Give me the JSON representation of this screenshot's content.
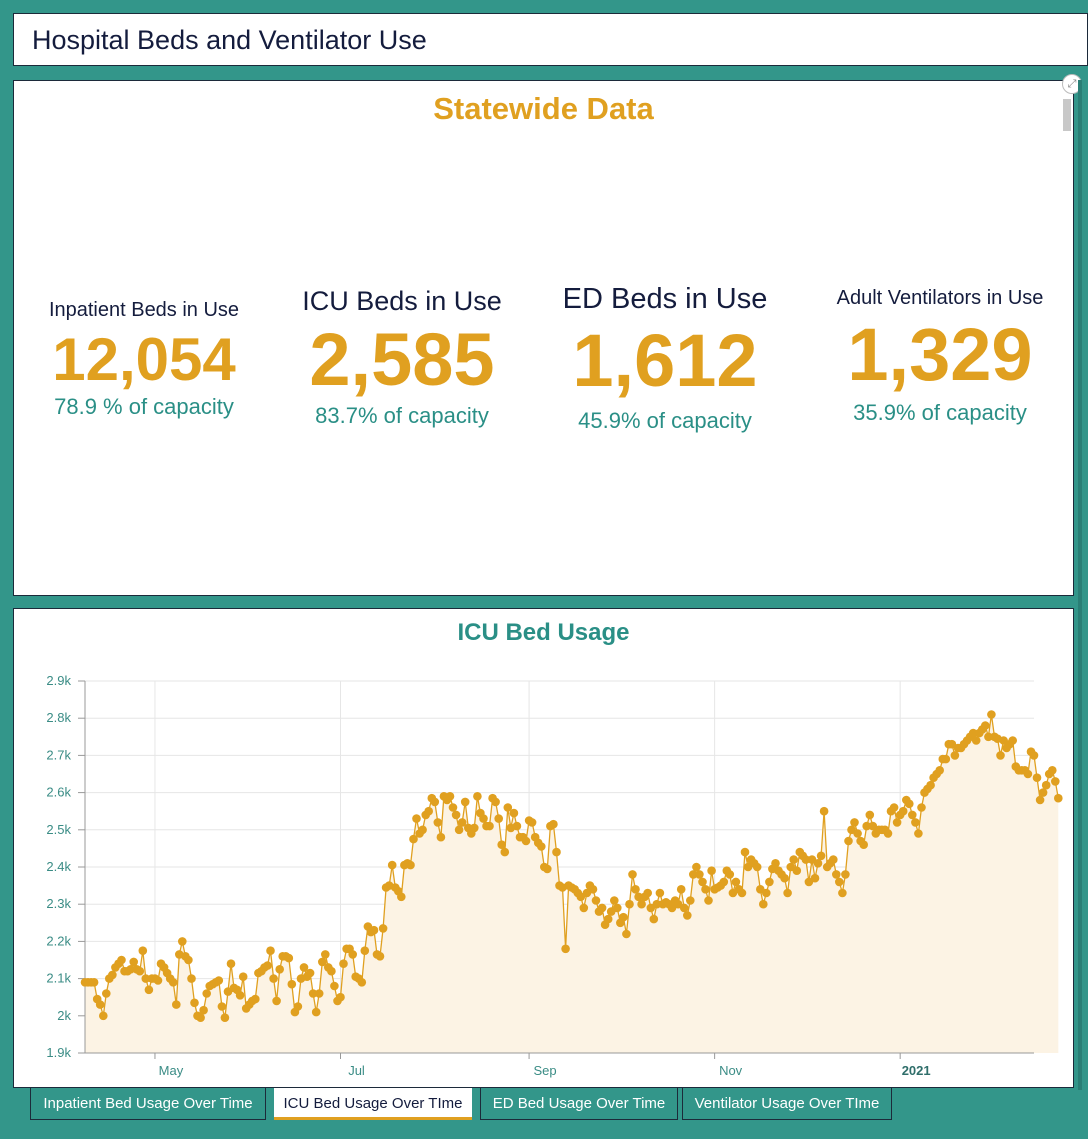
{
  "header": {
    "title": "Hospital Beds and Ventilator Use"
  },
  "stats_panel": {
    "title": "Statewide Data",
    "stats": [
      {
        "label": "Inpatient Beds in Use",
        "value": "12,054",
        "capacity": "78.9 % of capacity"
      },
      {
        "label": "ICU Beds in Use",
        "value": "2,585",
        "capacity": "83.7% of capacity"
      },
      {
        "label": "ED Beds in Use",
        "value": "1,612",
        "capacity": "45.9% of capacity"
      },
      {
        "label": "Adult Ventilators in Use",
        "value": "1,329",
        "capacity": "35.9% of capacity"
      }
    ],
    "expand_icon": "expand-icon"
  },
  "tabs": [
    {
      "label": "Inpatient Bed Usage Over Time",
      "active": false
    },
    {
      "label": "ICU Bed Usage Over TIme",
      "active": true
    },
    {
      "label": "ED Bed Usage Over Time",
      "active": false
    },
    {
      "label": "Ventilator Usage Over TIme",
      "active": false
    }
  ],
  "colors": {
    "accent": "#e0a020",
    "teal": "#33968a",
    "text_dark": "#141c3d",
    "area_fill": "#fcf3e4"
  },
  "chart_data": {
    "type": "area",
    "title": "ICU Bed Usage",
    "xlabel": "",
    "ylabel": "",
    "ylim": [
      1900,
      2900
    ],
    "yticks": [
      1900,
      2000,
      2100,
      2200,
      2300,
      2400,
      2500,
      2600,
      2700,
      2800,
      2900
    ],
    "ytick_labels": [
      "1.9k",
      "2k",
      "2.1k",
      "2.2k",
      "2.3k",
      "2.4k",
      "2.5k",
      "2.6k",
      "2.7k",
      "2.8k",
      "2.9k"
    ],
    "x_start": "2020-04-08",
    "x_end": "2021-02-14",
    "xticks": [
      {
        "date": "2020-05-01",
        "label": "May",
        "bold": false
      },
      {
        "date": "2020-07-01",
        "label": "Jul",
        "bold": false
      },
      {
        "date": "2020-09-01",
        "label": "Sep",
        "bold": false
      },
      {
        "date": "2020-11-01",
        "label": "Nov",
        "bold": false
      },
      {
        "date": "2021-01-01",
        "label": "2021",
        "bold": true
      }
    ],
    "grid": true,
    "legend": "none",
    "series": [
      {
        "name": "ICU Beds in Use",
        "start_date": "2020-04-08",
        "interval_days": 1,
        "values": [
          2090,
          2090,
          2090,
          2090,
          2045,
          2030,
          2000,
          2060,
          2100,
          2110,
          2130,
          2140,
          2150,
          2120,
          2120,
          2125,
          2145,
          2125,
          2120,
          2175,
          2100,
          2070,
          2100,
          2100,
          2095,
          2140,
          2130,
          2115,
          2100,
          2090,
          2030,
          2165,
          2200,
          2160,
          2150,
          2100,
          2035,
          2000,
          1995,
          2015,
          2060,
          2080,
          2085,
          2090,
          2095,
          2025,
          1995,
          2065,
          2140,
          2075,
          2070,
          2055,
          2105,
          2020,
          2030,
          2040,
          2045,
          2115,
          2120,
          2130,
          2135,
          2175,
          2100,
          2040,
          2125,
          2160,
          2160,
          2155,
          2085,
          2010,
          2025,
          2100,
          2130,
          2105,
          2115,
          2060,
          2010,
          2060,
          2145,
          2165,
          2130,
          2120,
          2080,
          2040,
          2050,
          2140,
          2180,
          2180,
          2165,
          2105,
          2100,
          2090,
          2175,
          2240,
          2225,
          2230,
          2165,
          2160,
          2235,
          2345,
          2350,
          2405,
          2345,
          2335,
          2320,
          2405,
          2410,
          2405,
          2475,
          2530,
          2490,
          2500,
          2540,
          2550,
          2585,
          2575,
          2520,
          2480,
          2590,
          2580,
          2590,
          2560,
          2540,
          2500,
          2520,
          2575,
          2505,
          2490,
          2505,
          2590,
          2545,
          2530,
          2510,
          2510,
          2585,
          2575,
          2530,
          2460,
          2440,
          2560,
          2505,
          2545,
          2510,
          2480,
          2480,
          2470,
          2525,
          2520,
          2480,
          2465,
          2455,
          2400,
          2395,
          2510,
          2515,
          2440,
          2350,
          2345,
          2180,
          2350,
          2345,
          2340,
          2330,
          2320,
          2290,
          2330,
          2350,
          2340,
          2310,
          2280,
          2290,
          2245,
          2260,
          2280,
          2310,
          2290,
          2250,
          2265,
          2220,
          2300,
          2380,
          2340,
          2320,
          2300,
          2320,
          2330,
          2290,
          2260,
          2300,
          2330,
          2300,
          2305,
          2300,
          2290,
          2310,
          2300,
          2340,
          2290,
          2270,
          2310,
          2380,
          2400,
          2380,
          2360,
          2340,
          2310,
          2390,
          2340,
          2345,
          2350,
          2360,
          2390,
          2380,
          2330,
          2360,
          2340,
          2330,
          2440,
          2400,
          2420,
          2410,
          2400,
          2340,
          2300,
          2330,
          2360,
          2395,
          2410,
          2390,
          2380,
          2370,
          2330,
          2400,
          2420,
          2390,
          2440,
          2430,
          2420,
          2360,
          2420,
          2370,
          2410,
          2430,
          2550,
          2400,
          2410,
          2420,
          2380,
          2360,
          2330,
          2380,
          2470,
          2500,
          2520,
          2490,
          2470,
          2460,
          2510,
          2540,
          2510,
          2490,
          2500,
          2500,
          2500,
          2490,
          2550,
          2560,
          2520,
          2540,
          2550,
          2580,
          2570,
          2540,
          2520,
          2490,
          2560,
          2600,
          2610,
          2620,
          2640,
          2650,
          2660,
          2690,
          2690,
          2730,
          2730,
          2700,
          2720,
          2720,
          2730,
          2740,
          2750,
          2760,
          2740,
          2760,
          2770,
          2780,
          2750,
          2810,
          2750,
          2745,
          2700,
          2740,
          2720,
          2730,
          2740,
          2670,
          2660,
          2660,
          2660,
          2650,
          2710,
          2700,
          2640,
          2580,
          2600,
          2620,
          2650,
          2660,
          2630,
          2585
        ]
      }
    ]
  }
}
